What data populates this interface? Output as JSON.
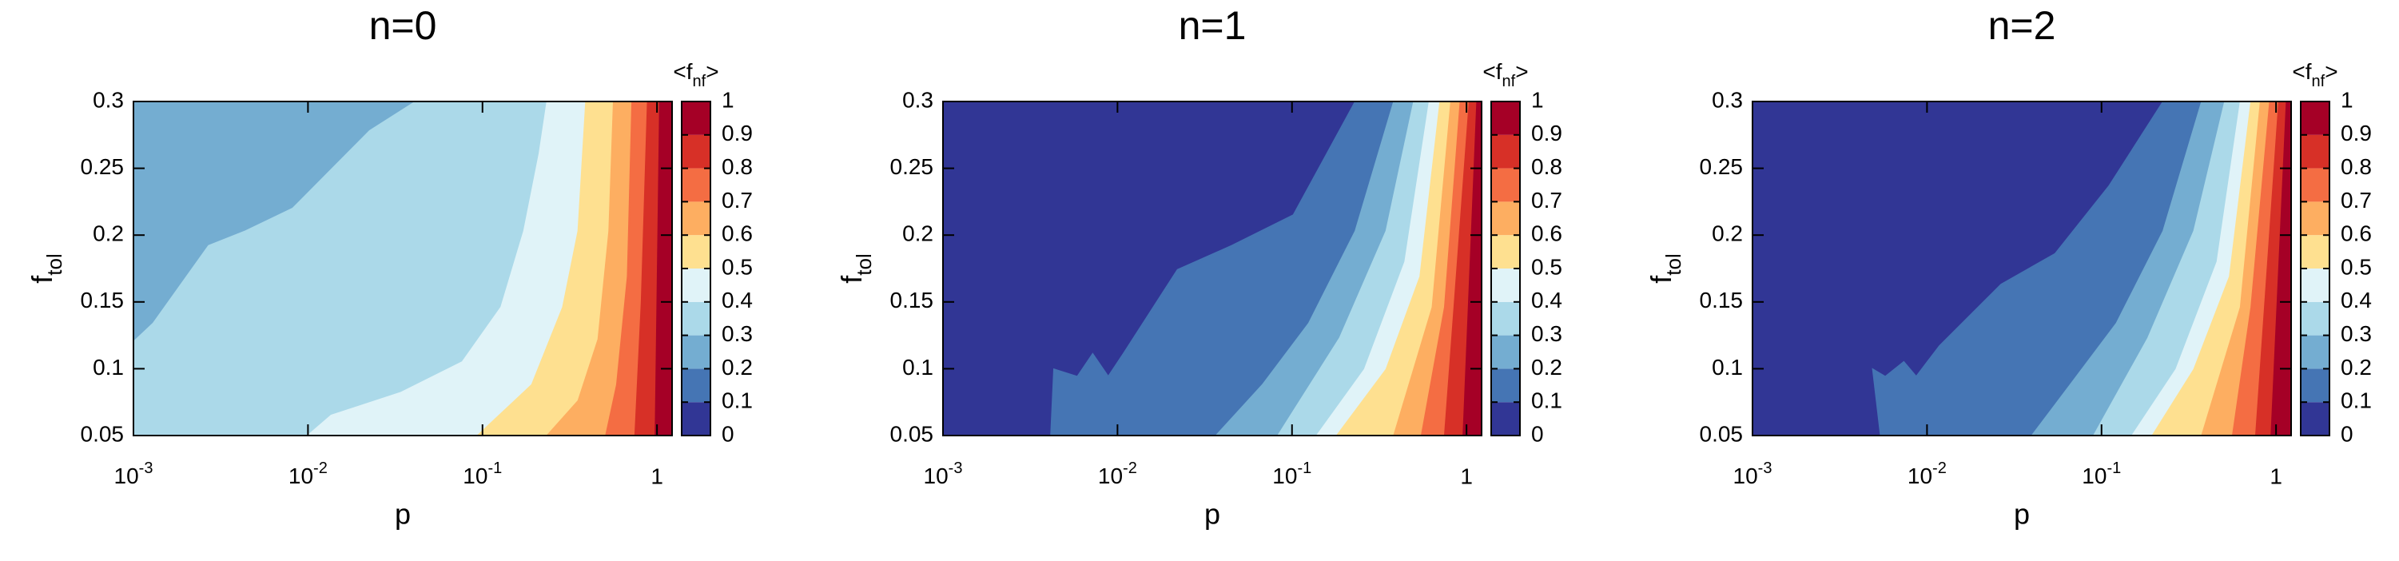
{
  "chart_data": [
    {
      "type": "contour",
      "title": "n=0",
      "xlabel": "p",
      "ylabel": {
        "text": "f",
        "sub": "tol"
      },
      "colorbar_label": {
        "text": "<f",
        "sub": "nf",
        "after": ">"
      },
      "xscale": "log",
      "xlim": [
        0.001,
        1.22
      ],
      "ylim": [
        0.05,
        0.3
      ],
      "xticks": [
        {
          "value": 0.001,
          "label": "10^-3"
        },
        {
          "value": 0.01,
          "label": "10^-2"
        },
        {
          "value": 0.1,
          "label": "10^-1"
        },
        1
      ],
      "yticks": [
        0.05,
        0.1,
        0.15,
        0.2,
        0.25,
        0.3
      ],
      "cbticks": [
        0,
        0.1,
        0.2,
        0.3,
        0.4,
        0.5,
        0.6,
        0.7,
        0.8,
        0.9,
        1
      ],
      "colors": [
        "#313695",
        "#4575b4",
        "#74add1",
        "#abd9e9",
        "#e0f3f8",
        "#fee090",
        "#fdae61",
        "#f46d43",
        "#d73027",
        "#a50026"
      ],
      "background_level": 0.2,
      "contours": [
        {
          "level": 0.3,
          "p": [
            0.0416,
            0.0226,
            0.0136,
            0.0082,
            0.0044,
            0.0027,
            0.0013,
            0.001
          ],
          "ftol": [
            0.3,
            0.278,
            0.249,
            0.22,
            0.203,
            0.192,
            0.134,
            0.12
          ]
        },
        {
          "level": 0.4,
          "p": [
            0.235,
            0.212,
            0.173,
            0.128,
            0.0767,
            0.034,
            0.0136,
            0.01
          ],
          "ftol": [
            0.3,
            0.261,
            0.203,
            0.146,
            0.105,
            0.082,
            0.065,
            0.05
          ]
        },
        {
          "level": 0.5,
          "p": [
            0.392,
            0.354,
            0.289,
            0.192,
            0.094
          ],
          "ftol": [
            0.3,
            0.203,
            0.146,
            0.088,
            0.05
          ]
        },
        {
          "level": 0.6,
          "p": [
            0.565,
            0.532,
            0.461,
            0.354,
            0.235
          ],
          "ftol": [
            0.3,
            0.203,
            0.122,
            0.076,
            0.05
          ]
        },
        {
          "level": 0.7,
          "p": [
            0.721,
            0.679,
            0.589,
            0.51
          ],
          "ftol": [
            0.3,
            0.169,
            0.088,
            0.05
          ]
        },
        {
          "level": 0.8,
          "p": [
            0.885,
            0.816,
            0.75
          ],
          "ftol": [
            0.3,
            0.15,
            0.05
          ]
        },
        {
          "level": 0.9,
          "p": [
            1.04,
            0.98
          ],
          "ftol": [
            0.3,
            0.05
          ]
        }
      ]
    },
    {
      "type": "contour",
      "title": "n=1",
      "xlabel": "p",
      "ylabel": {
        "text": "f",
        "sub": "tol"
      },
      "colorbar_label": {
        "text": "<f",
        "sub": "nf",
        "after": ">"
      },
      "xscale": "log",
      "xlim": [
        0.001,
        1.22
      ],
      "ylim": [
        0.05,
        0.3
      ],
      "xticks": [
        {
          "value": 0.001,
          "label": "10^-3"
        },
        {
          "value": 0.01,
          "label": "10^-2"
        },
        {
          "value": 0.1,
          "label": "10^-1"
        },
        1
      ],
      "yticks": [
        0.05,
        0.1,
        0.15,
        0.2,
        0.25,
        0.3
      ],
      "cbticks": [
        0,
        0.1,
        0.2,
        0.3,
        0.4,
        0.5,
        0.6,
        0.7,
        0.8,
        0.9,
        1
      ],
      "colors": [
        "#313695",
        "#4575b4",
        "#74add1",
        "#abd9e9",
        "#e0f3f8",
        "#fee090",
        "#fdae61",
        "#f46d43",
        "#d73027",
        "#a50026"
      ],
      "background_level": 0,
      "contours": [
        {
          "level": 0.1,
          "p": [
            0.231,
            0.102,
            0.0452,
            0.0221,
            0.0108,
            0.00885,
            0.00721,
            0.00589,
            0.00433,
            0.00416
          ],
          "ftol": [
            0.3,
            0.215,
            0.192,
            0.174,
            0.111,
            0.094,
            0.111,
            0.094,
            0.0995,
            0.05
          ]
        },
        {
          "level": 0.2,
          "p": [
            0.384,
            0.231,
            0.125,
            0.0679,
            0.0368
          ],
          "ftol": [
            0.3,
            0.203,
            0.134,
            0.088,
            0.05
          ]
        },
        {
          "level": 0.3,
          "p": [
            0.5,
            0.347,
            0.188,
            0.0832
          ],
          "ftol": [
            0.3,
            0.203,
            0.123,
            0.05
          ]
        },
        {
          "level": 0.4,
          "p": [
            0.614,
            0.445,
            0.261,
            0.139
          ],
          "ftol": [
            0.3,
            0.18,
            0.0995,
            0.05
          ]
        },
        {
          "level": 0.5,
          "p": [
            0.707,
            0.543,
            0.347,
            0.181
          ],
          "ftol": [
            0.3,
            0.169,
            0.0995,
            0.05
          ]
        },
        {
          "level": 0.6,
          "p": [
            0.816,
            0.638,
            0.384
          ],
          "ftol": [
            0.3,
            0.146,
            0.05
          ]
        },
        {
          "level": 0.7,
          "p": [
            0.923,
            0.751,
            0.553
          ],
          "ftol": [
            0.3,
            0.146,
            0.05
          ]
        },
        {
          "level": 0.8,
          "p": [
            1.04,
            0.751
          ],
          "ftol": [
            0.3,
            0.05
          ]
        },
        {
          "level": 0.9,
          "p": [
            1.15,
            0.959
          ],
          "ftol": [
            0.3,
            0.05
          ]
        }
      ]
    },
    {
      "type": "contour",
      "title": "n=2",
      "xlabel": "p",
      "ylabel": {
        "text": "f",
        "sub": "tol"
      },
      "colorbar_label": {
        "text": "<f",
        "sub": "nf",
        "after": ">"
      },
      "xscale": "log",
      "xlim": [
        0.001,
        1.22
      ],
      "ylim": [
        0.05,
        0.3
      ],
      "xticks": [
        {
          "value": 0.001,
          "label": "10^-3"
        },
        {
          "value": 0.01,
          "label": "10^-2"
        },
        {
          "value": 0.1,
          "label": "10^-1"
        },
        1
      ],
      "yticks": [
        0.05,
        0.1,
        0.15,
        0.2,
        0.25,
        0.3
      ],
      "cbticks": [
        0,
        0.1,
        0.2,
        0.3,
        0.4,
        0.5,
        0.6,
        0.7,
        0.8,
        0.9,
        1
      ],
      "colors": [
        "#313695",
        "#4575b4",
        "#74add1",
        "#abd9e9",
        "#e0f3f8",
        "#fee090",
        "#fdae61",
        "#f46d43",
        "#d73027",
        "#a50026"
      ],
      "background_level": 0,
      "contours": [
        {
          "level": 0.1,
          "p": [
            0.226,
            0.111,
            0.0543,
            0.0266,
            0.0118,
            0.00867,
            0.00736,
            0.00577,
            0.0049,
            0.00543
          ],
          "ftol": [
            0.3,
            0.237,
            0.186,
            0.163,
            0.117,
            0.094,
            0.105,
            0.094,
            0.0995,
            0.05
          ]
        },
        {
          "level": 0.2,
          "p": [
            0.376,
            0.226,
            0.122,
            0.0663,
            0.04
          ],
          "ftol": [
            0.3,
            0.203,
            0.134,
            0.088,
            0.05
          ]
        },
        {
          "level": 0.3,
          "p": [
            0.51,
            0.339,
            0.185,
            0.0904
          ],
          "ftol": [
            0.3,
            0.203,
            0.123,
            0.05
          ]
        },
        {
          "level": 0.4,
          "p": [
            0.627,
            0.461,
            0.268,
            0.15
          ],
          "ftol": [
            0.3,
            0.18,
            0.0995,
            0.05
          ]
        },
        {
          "level": 0.5,
          "p": [
            0.721,
            0.543,
            0.339,
            0.196
          ],
          "ftol": [
            0.3,
            0.169,
            0.0995,
            0.05
          ]
        },
        {
          "level": 0.6,
          "p": [
            0.816,
            0.627,
            0.376
          ],
          "ftol": [
            0.3,
            0.146,
            0.05
          ]
        },
        {
          "level": 0.7,
          "p": [
            0.923,
            0.721,
            0.565
          ],
          "ftol": [
            0.3,
            0.146,
            0.05
          ]
        },
        {
          "level": 0.8,
          "p": [
            1.04,
            0.767
          ],
          "ftol": [
            0.3,
            0.05
          ]
        },
        {
          "level": 0.9,
          "p": [
            1.15,
            0.94
          ],
          "ftol": [
            0.3,
            0.05
          ]
        }
      ]
    }
  ]
}
